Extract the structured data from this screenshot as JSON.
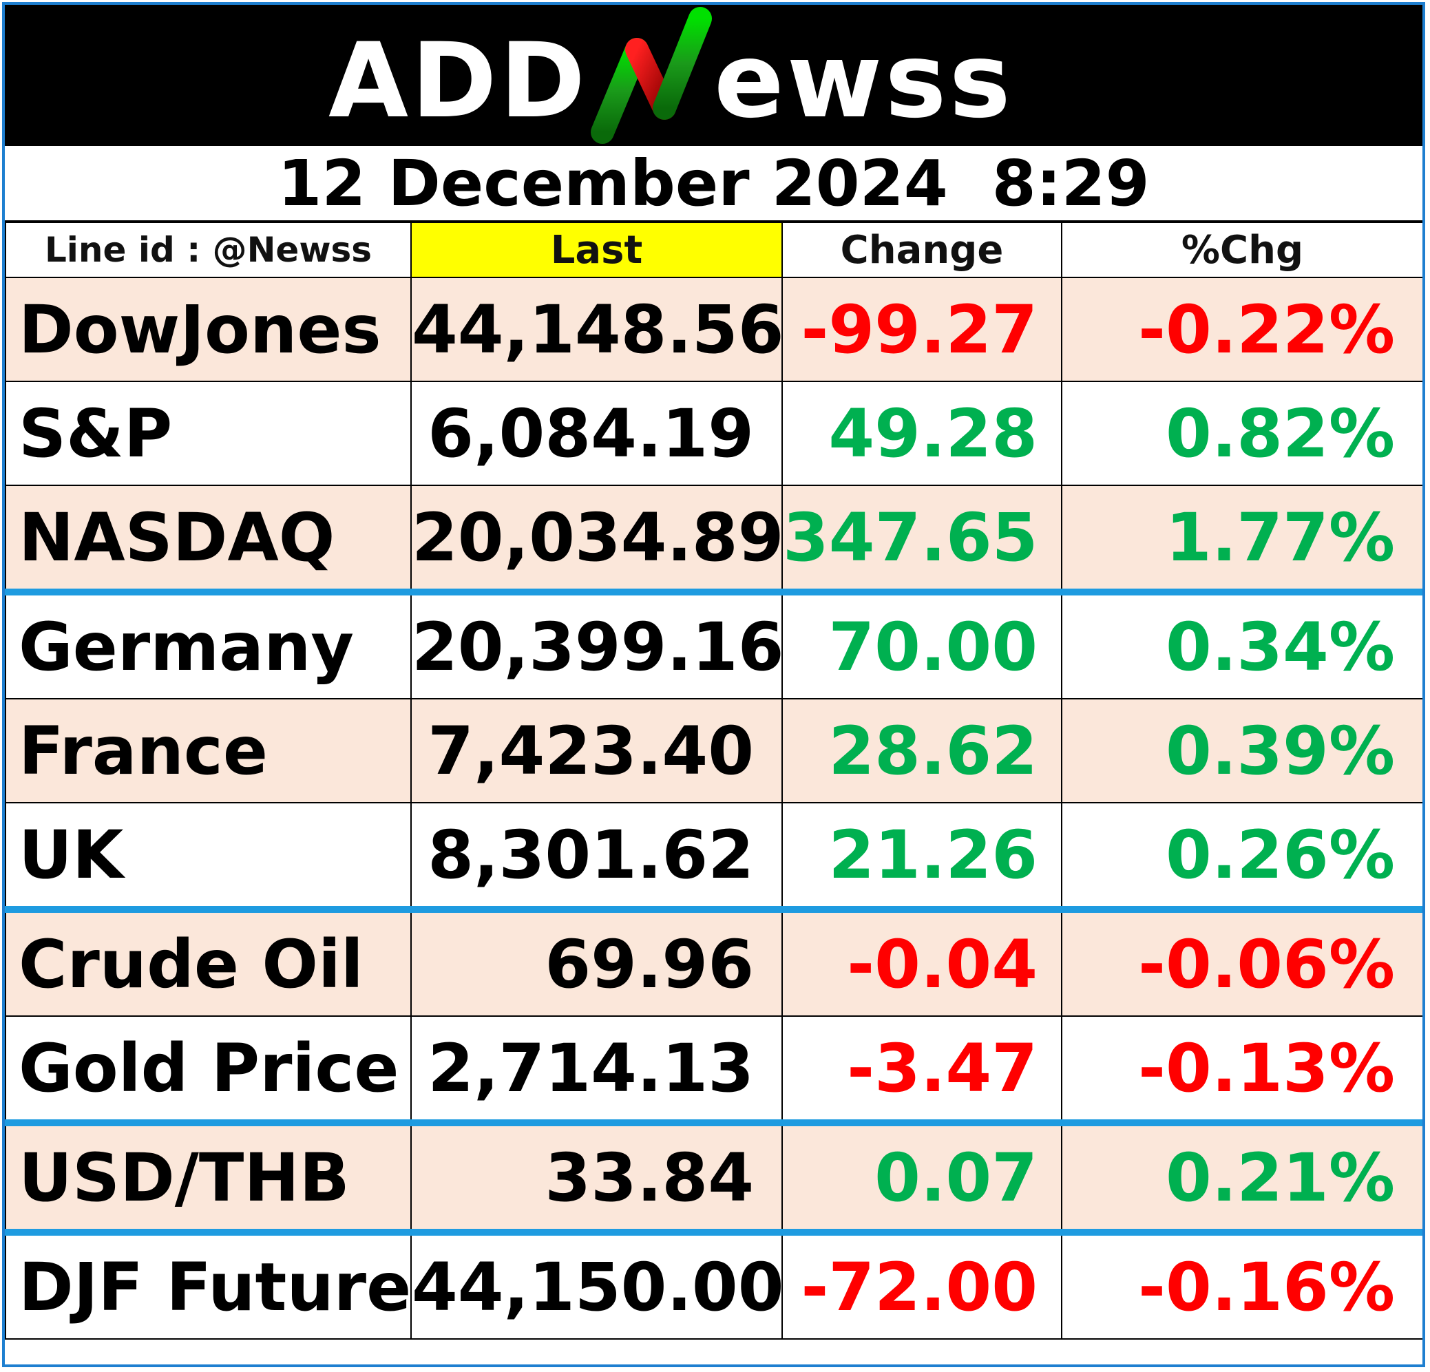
{
  "brand": {
    "name": "ADDNewss",
    "logo_text_left": "ADD",
    "logo_letter": "N",
    "logo_text_right": "ewss"
  },
  "date": "12 December 2024  8:29",
  "columns": {
    "line_id": "Line id : @Newss",
    "last": "Last",
    "change": "Change",
    "pct_change": "%Chg"
  },
  "rows": [
    {
      "name": "DowJones",
      "last": "44,148.56",
      "change": "-99.27",
      "pct": "-0.22%",
      "dir": "neg"
    },
    {
      "name": "S&P",
      "last": "6,084.19",
      "change": "49.28",
      "pct": "0.82%",
      "dir": "pos"
    },
    {
      "name": "NASDAQ",
      "last": "20,034.89",
      "change": "347.65",
      "pct": "1.77%",
      "dir": "pos"
    },
    {
      "name": "Germany",
      "last": "20,399.16",
      "change": "70.00",
      "pct": "0.34%",
      "dir": "pos"
    },
    {
      "name": "France",
      "last": "7,423.40",
      "change": "28.62",
      "pct": "0.39%",
      "dir": "pos"
    },
    {
      "name": "UK",
      "last": "8,301.62",
      "change": "21.26",
      "pct": "0.26%",
      "dir": "pos"
    },
    {
      "name": "Crude Oil",
      "last": "69.96",
      "change": "-0.04",
      "pct": "-0.06%",
      "dir": "neg"
    },
    {
      "name": "Gold Price",
      "last": "2,714.13",
      "change": "-3.47",
      "pct": "-0.13%",
      "dir": "neg"
    },
    {
      "name": "USD/THB",
      "last": "33.84",
      "change": "0.07",
      "pct": "0.21%",
      "dir": "pos"
    },
    {
      "name": "DJF Future",
      "last": "44,150.00",
      "change": "-72.00",
      "pct": "-0.16%",
      "dir": "neg"
    }
  ],
  "colors": {
    "positive": "#00b050",
    "negative": "#ff0000",
    "header_bg": "#000000",
    "highlight": "#ffff00",
    "shade": "#fbe7da",
    "separator": "#1e9be0"
  }
}
